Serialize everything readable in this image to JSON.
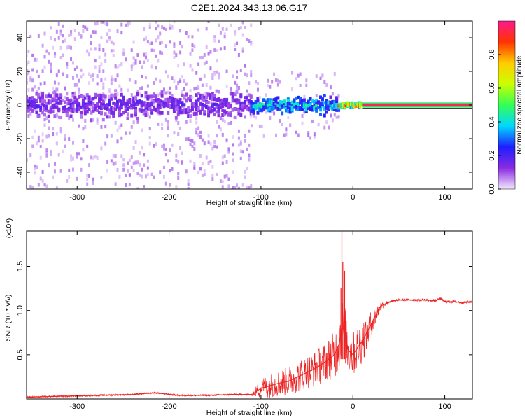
{
  "title": "C2E1.2024.343.13.06.G17",
  "chart_data": [
    {
      "type": "heatmap",
      "xlabel": "Height of straight line (km)",
      "ylabel": "Frequency (Hz)",
      "xlim": [
        -355,
        130
      ],
      "ylim": [
        -50,
        50
      ],
      "xticks": [
        -300,
        -200,
        -100,
        0,
        100
      ],
      "yticks": [
        -40,
        -20,
        0,
        20,
        40
      ],
      "colorbar": {
        "label": "Normalized spectral amplitude",
        "range": [
          0,
          1
        ],
        "ticks": [
          "0.0",
          "0.2",
          "0.4",
          "0.6",
          "0.8"
        ],
        "tick_values": [
          0.0,
          0.2,
          0.4,
          0.6,
          0.8
        ],
        "colors": [
          "#f4e8ff",
          "#8a2be2",
          "#1e1eff",
          "#00d8ff",
          "#33ff55",
          "#ccff00",
          "#ffcc00",
          "#ff3300",
          "#ff1a8c"
        ]
      },
      "features": [
        {
          "x_range": [
            -355,
            -110
          ],
          "freq_center": 0,
          "freq_halfwidth_core": 10,
          "scatter_halfwidth": 50,
          "amplitude": 0.15
        },
        {
          "x_range": [
            -110,
            -15
          ],
          "freq_center": 0,
          "freq_halfwidth_core": 7,
          "scatter_halfwidth": 20,
          "amplitude": 0.35
        },
        {
          "x_range": [
            -15,
            10
          ],
          "freq_center": 0,
          "freq_halfwidth_core": 2,
          "amplitude": 0.7
        },
        {
          "x_range": [
            10,
            130
          ],
          "freq_center": 0,
          "freq_halfwidth_core": 1.5,
          "amplitude": 0.95
        }
      ]
    },
    {
      "type": "line",
      "xlabel": "Height of straight line (km)",
      "ylabel": "SNR (10 * v/v)",
      "multiplier": "(x10⁴)",
      "xlim": [
        -355,
        130
      ],
      "ylim": [
        0,
        1.9
      ],
      "xticks": [
        -300,
        -200,
        -100,
        0,
        100
      ],
      "yticks": [
        0.5,
        1.0,
        1.5
      ],
      "yticklabels": [
        "0.5",
        "1.0",
        "1.5"
      ],
      "color": "#ee2222",
      "x": [
        -355,
        -320,
        -280,
        -240,
        -215,
        -190,
        -160,
        -130,
        -110,
        -100,
        -90,
        -80,
        -70,
        -60,
        -50,
        -40,
        -30,
        -20,
        -15,
        -12,
        -10,
        -5,
        0,
        5,
        10,
        15,
        20,
        25,
        30,
        40,
        50,
        60,
        70,
        80,
        90,
        95,
        100,
        110,
        120,
        130
      ],
      "values": [
        0.02,
        0.03,
        0.04,
        0.05,
        0.07,
        0.04,
        0.04,
        0.05,
        0.05,
        0.12,
        0.15,
        0.18,
        0.2,
        0.25,
        0.3,
        0.35,
        0.42,
        0.5,
        0.62,
        0.8,
        0.8,
        0.55,
        0.5,
        0.58,
        0.65,
        0.75,
        0.85,
        0.95,
        1.05,
        1.1,
        1.12,
        1.12,
        1.12,
        1.12,
        1.11,
        1.14,
        1.1,
        1.1,
        1.09,
        1.1
      ],
      "noise_envelope": {
        "x": [
          -355,
          -110,
          -100,
          -60,
          -30,
          -15,
          -10,
          0,
          10,
          20,
          30,
          40,
          130
        ],
        "amplitude": [
          0.01,
          0.01,
          0.12,
          0.18,
          0.22,
          0.3,
          0.35,
          0.25,
          0.25,
          0.15,
          0.05,
          0.015,
          0.015
        ]
      },
      "spikes": [
        {
          "x": -12,
          "value": 1.9
        },
        {
          "x": -11,
          "value": 1.55
        },
        {
          "x": -13,
          "value": 1.25
        },
        {
          "x": -9,
          "value": 1.45
        }
      ]
    }
  ]
}
